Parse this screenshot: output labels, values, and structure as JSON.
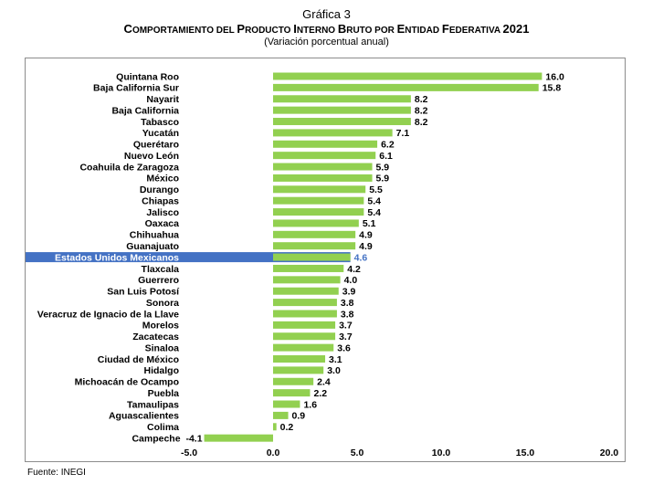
{
  "header": {
    "figure_label": "Gráfica 3",
    "title": "Comportamiento del Producto Interno Bruto por Entidad Federativa 2021",
    "subtitle": "(Variación porcentual anual)"
  },
  "footer": {
    "source": "Fuente: INEGI"
  },
  "colors": {
    "bar": "#92d050",
    "highlight_band": "#4472c4",
    "highlight_value": "#4472c4"
  },
  "chart_data": {
    "type": "bar",
    "orientation": "horizontal",
    "title": "Comportamiento del Producto Interno Bruto por Entidad Federativa 2021",
    "subtitle": "(Variación porcentual anual)",
    "xlim": [
      -5.0,
      20.0
    ],
    "xticks": [
      "-5.0",
      "0.0",
      "5.0",
      "10.0",
      "15.0",
      "20.0"
    ],
    "xtick_values": [
      -5,
      0,
      5,
      10,
      15,
      20
    ],
    "highlight": "Estados Unidos Mexicanos",
    "categories": [
      "Quintana Roo",
      "Baja California Sur",
      "Nayarit",
      "Baja California",
      "Tabasco",
      "Yucatán",
      "Querétaro",
      "Nuevo León",
      "Coahuila de Zaragoza",
      "México",
      "Durango",
      "Chiapas",
      "Jalisco",
      "Oaxaca",
      "Chihuahua",
      "Guanajuato",
      "Estados Unidos Mexicanos",
      "Tlaxcala",
      "Guerrero",
      "San Luis Potosí",
      "Sonora",
      "Veracruz de Ignacio de la Llave",
      "Morelos",
      "Zacatecas",
      "Sinaloa",
      "Ciudad de México",
      "Hidalgo",
      "Michoacán de Ocampo",
      "Puebla",
      "Tamaulipas",
      "Aguascalientes",
      "Colima",
      "Campeche"
    ],
    "values": [
      16.0,
      15.8,
      8.2,
      8.2,
      8.2,
      7.1,
      6.2,
      6.1,
      5.9,
      5.9,
      5.5,
      5.4,
      5.4,
      5.1,
      4.9,
      4.9,
      4.6,
      4.2,
      4.0,
      3.9,
      3.8,
      3.8,
      3.7,
      3.7,
      3.6,
      3.1,
      3.0,
      2.4,
      2.2,
      1.6,
      0.9,
      0.2,
      -4.1
    ],
    "value_labels": [
      "16.0",
      "15.8",
      "8.2",
      "8.2",
      "8.2",
      "7.1",
      "6.2",
      "6.1",
      "5.9",
      "5.9",
      "5.5",
      "5.4",
      "5.4",
      "5.1",
      "4.9",
      "4.9",
      "4.6",
      "4.2",
      "4.0",
      "3.9",
      "3.8",
      "3.8",
      "3.7",
      "3.7",
      "3.6",
      "3.1",
      "3.0",
      "2.4",
      "2.2",
      "1.6",
      "0.9",
      "0.2",
      "-4.1"
    ],
    "grid": false,
    "legend": "none"
  }
}
